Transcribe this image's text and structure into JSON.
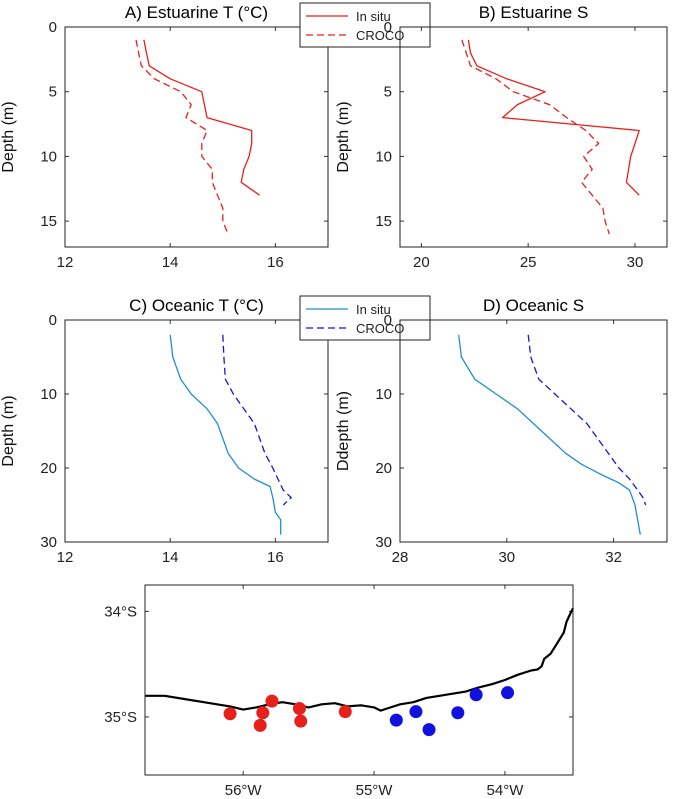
{
  "chart_data": [
    {
      "type": "line",
      "title": "A) Estuarine T (°C)",
      "xlabel": "",
      "ylabel": "Depth (m)",
      "xlim": [
        12,
        17
      ],
      "ylim": [
        0,
        17
      ],
      "y_reversed": true,
      "xticks": [
        12,
        14,
        16
      ],
      "yticks": [
        0,
        5,
        10,
        15
      ],
      "legend": {
        "placement": "top-right",
        "entries": [
          "In situ",
          "CROCO"
        ]
      },
      "series": [
        {
          "name": "In situ",
          "color": "#e8201c",
          "dash": "solid",
          "points": [
            [
              13.5,
              1
            ],
            [
              13.55,
              2
            ],
            [
              13.6,
              3
            ],
            [
              14.0,
              4
            ],
            [
              14.6,
              5
            ],
            [
              14.65,
              6
            ],
            [
              14.7,
              7
            ],
            [
              15.55,
              8
            ],
            [
              15.55,
              9
            ],
            [
              15.5,
              10
            ],
            [
              15.4,
              11
            ],
            [
              15.35,
              12
            ],
            [
              15.7,
              13
            ]
          ]
        },
        {
          "name": "CROCO",
          "color": "#e8201c",
          "dash": "dashed",
          "points": [
            [
              13.35,
              1
            ],
            [
              13.4,
              2
            ],
            [
              13.45,
              3
            ],
            [
              13.7,
              4
            ],
            [
              14.2,
              5
            ],
            [
              14.4,
              6
            ],
            [
              14.3,
              7
            ],
            [
              14.7,
              8
            ],
            [
              14.6,
              9
            ],
            [
              14.6,
              10
            ],
            [
              14.8,
              11
            ],
            [
              14.8,
              12
            ],
            [
              14.9,
              13
            ],
            [
              15.0,
              14
            ],
            [
              15.0,
              15
            ],
            [
              15.1,
              16
            ]
          ]
        }
      ]
    },
    {
      "type": "line",
      "title": "B) Estuarine S",
      "xlabel": "",
      "ylabel": "Depth (m)",
      "xlim": [
        19,
        31.5
      ],
      "ylim": [
        0,
        17
      ],
      "y_reversed": true,
      "xticks": [
        20,
        25,
        30
      ],
      "yticks": [
        0,
        5,
        10,
        15
      ],
      "series": [
        {
          "name": "In situ",
          "color": "#e8201c",
          "dash": "solid",
          "points": [
            [
              22.2,
              1
            ],
            [
              22.3,
              2
            ],
            [
              22.6,
              3
            ],
            [
              24.0,
              4
            ],
            [
              25.8,
              5
            ],
            [
              24.5,
              6
            ],
            [
              23.8,
              7
            ],
            [
              30.2,
              8
            ],
            [
              30.0,
              9
            ],
            [
              29.8,
              10
            ],
            [
              29.7,
              11
            ],
            [
              29.6,
              12
            ],
            [
              30.2,
              13
            ]
          ]
        },
        {
          "name": "CROCO",
          "color": "#e8201c",
          "dash": "dashed",
          "points": [
            [
              21.9,
              1
            ],
            [
              22.1,
              2
            ],
            [
              22.3,
              3
            ],
            [
              23.5,
              4
            ],
            [
              24.3,
              5
            ],
            [
              26.0,
              6
            ],
            [
              26.8,
              7
            ],
            [
              27.7,
              8
            ],
            [
              28.3,
              9
            ],
            [
              27.6,
              10
            ],
            [
              28.0,
              11
            ],
            [
              27.5,
              12
            ],
            [
              28.0,
              13
            ],
            [
              28.5,
              14
            ],
            [
              28.6,
              15
            ],
            [
              28.8,
              16
            ]
          ]
        }
      ]
    },
    {
      "type": "line",
      "title": "C) Oceanic T (°C)",
      "xlabel": "",
      "ylabel": "Depth (m)",
      "xlim": [
        12,
        17
      ],
      "ylim": [
        0,
        30
      ],
      "y_reversed": true,
      "xticks": [
        12,
        14,
        16
      ],
      "yticks": [
        0,
        10,
        20,
        30
      ],
      "legend": {
        "placement": "top-right",
        "entries": [
          "In situ",
          "CROCO"
        ]
      },
      "series": [
        {
          "name": "In situ",
          "color": "#1f8fd1",
          "dash": "solid",
          "points": [
            [
              14.0,
              2
            ],
            [
              14.05,
              5
            ],
            [
              14.2,
              8
            ],
            [
              14.4,
              10
            ],
            [
              14.7,
              12
            ],
            [
              14.9,
              14
            ],
            [
              15.0,
              16
            ],
            [
              15.1,
              18
            ],
            [
              15.3,
              20
            ],
            [
              15.6,
              21.5
            ],
            [
              15.9,
              22.5
            ],
            [
              15.95,
              24
            ],
            [
              16.0,
              26
            ],
            [
              16.1,
              27
            ],
            [
              16.1,
              29
            ]
          ]
        },
        {
          "name": "CROCO",
          "color": "#1515d8",
          "dash": "dashed",
          "points": [
            [
              15.0,
              2
            ],
            [
              15.02,
              5
            ],
            [
              15.05,
              8
            ],
            [
              15.2,
              10
            ],
            [
              15.4,
              12
            ],
            [
              15.6,
              14
            ],
            [
              15.7,
              16
            ],
            [
              15.8,
              18
            ],
            [
              15.95,
              20
            ],
            [
              16.05,
              21.5
            ],
            [
              16.15,
              23
            ],
            [
              16.3,
              24
            ],
            [
              16.15,
              25
            ]
          ]
        }
      ]
    },
    {
      "type": "line",
      "title": "D) Oceanic S",
      "xlabel": "",
      "ylabel": "Ddepth (m)",
      "xlim": [
        28,
        33
      ],
      "ylim": [
        0,
        30
      ],
      "y_reversed": true,
      "xticks": [
        28,
        30,
        32
      ],
      "yticks": [
        0,
        10,
        20,
        30
      ],
      "series": [
        {
          "name": "In situ",
          "color": "#1f8fd1",
          "dash": "solid",
          "points": [
            [
              29.1,
              2
            ],
            [
              29.15,
              5
            ],
            [
              29.4,
              8
            ],
            [
              29.8,
              10
            ],
            [
              30.2,
              12
            ],
            [
              30.5,
              14
            ],
            [
              30.8,
              16
            ],
            [
              31.1,
              18
            ],
            [
              31.4,
              19.5
            ],
            [
              31.8,
              21
            ],
            [
              32.1,
              22
            ],
            [
              32.3,
              23
            ],
            [
              32.4,
              25
            ],
            [
              32.45,
              27
            ],
            [
              32.5,
              29
            ]
          ]
        },
        {
          "name": "CROCO",
          "color": "#1515d8",
          "dash": "dashed",
          "points": [
            [
              30.4,
              2
            ],
            [
              30.45,
              5
            ],
            [
              30.6,
              8
            ],
            [
              30.9,
              10
            ],
            [
              31.2,
              12
            ],
            [
              31.5,
              14
            ],
            [
              31.7,
              16
            ],
            [
              31.9,
              18
            ],
            [
              32.1,
              20
            ],
            [
              32.3,
              21.5
            ],
            [
              32.4,
              22.5
            ],
            [
              32.55,
              24
            ],
            [
              32.6,
              25
            ]
          ]
        }
      ]
    },
    {
      "type": "scatter",
      "title": "",
      "xlabel": "",
      "ylabel": "",
      "xlim": [
        -56.75,
        -53.48
      ],
      "ylim": [
        -35.55,
        -33.75
      ],
      "xticks": [
        -56,
        -55,
        -54
      ],
      "yticks": [
        -34,
        -35
      ],
      "xticklabels": [
        "56°W",
        "55°W",
        "54°W"
      ],
      "yticklabels": [
        "34°S",
        "35°S"
      ],
      "coastline": [
        [
          -56.75,
          -34.8
        ],
        [
          -56.6,
          -34.8
        ],
        [
          -56.45,
          -34.83
        ],
        [
          -56.3,
          -34.86
        ],
        [
          -56.2,
          -34.88
        ],
        [
          -56.1,
          -34.9
        ],
        [
          -56.0,
          -34.93
        ],
        [
          -55.9,
          -34.91
        ],
        [
          -55.8,
          -34.88
        ],
        [
          -55.7,
          -34.86
        ],
        [
          -55.6,
          -34.88
        ],
        [
          -55.5,
          -34.91
        ],
        [
          -55.4,
          -34.88
        ],
        [
          -55.3,
          -34.87
        ],
        [
          -55.2,
          -34.9
        ],
        [
          -55.1,
          -34.89
        ],
        [
          -55.0,
          -34.91
        ],
        [
          -54.95,
          -34.94
        ],
        [
          -54.9,
          -34.92
        ],
        [
          -54.8,
          -34.88
        ],
        [
          -54.7,
          -34.86
        ],
        [
          -54.6,
          -34.82
        ],
        [
          -54.5,
          -34.8
        ],
        [
          -54.4,
          -34.78
        ],
        [
          -54.3,
          -34.76
        ],
        [
          -54.2,
          -34.72
        ],
        [
          -54.1,
          -34.69
        ],
        [
          -54.0,
          -34.65
        ],
        [
          -53.9,
          -34.6
        ],
        [
          -53.8,
          -34.56
        ],
        [
          -53.75,
          -34.55
        ],
        [
          -53.72,
          -34.52
        ],
        [
          -53.7,
          -34.45
        ],
        [
          -53.65,
          -34.4
        ],
        [
          -53.6,
          -34.3
        ],
        [
          -53.55,
          -34.2
        ],
        [
          -53.53,
          -34.1
        ],
        [
          -53.5,
          -34.02
        ],
        [
          -53.48,
          -33.97
        ]
      ],
      "series": [
        {
          "name": "Estuarine",
          "color": "#e8201c",
          "points": [
            [
              -56.1,
              -34.97
            ],
            [
              -55.78,
              -34.85
            ],
            [
              -55.85,
              -34.96
            ],
            [
              -55.57,
              -34.92
            ],
            [
              -55.87,
              -35.08
            ],
            [
              -55.56,
              -35.04
            ],
            [
              -55.22,
              -34.95
            ]
          ]
        },
        {
          "name": "Oceanic",
          "color": "#1010e0",
          "points": [
            [
              -54.83,
              -35.03
            ],
            [
              -54.68,
              -34.95
            ],
            [
              -54.58,
              -35.12
            ],
            [
              -54.36,
              -34.96
            ],
            [
              -54.22,
              -34.79
            ],
            [
              -53.98,
              -34.77
            ]
          ]
        }
      ]
    }
  ]
}
